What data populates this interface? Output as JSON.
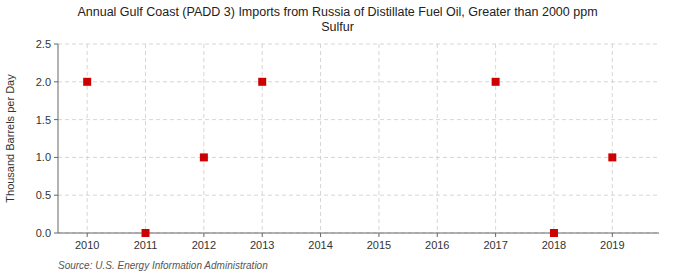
{
  "chart_data": {
    "type": "scatter",
    "title": "Annual Gulf Coast (PADD 3) Imports from Russia of Distillate Fuel Oil, Greater than 2000 ppm\nSulfur",
    "y_label": "Thousand Barrels per Day",
    "annotations": [
      "Source: U.S. Energy Information Administration"
    ],
    "x": [
      2010,
      2011,
      2012,
      2013,
      2017,
      2018,
      2019
    ],
    "values": [
      2.0,
      0.0,
      1.0,
      2.0,
      2.0,
      0.0,
      1.0
    ],
    "color": "#cc0000",
    "marker": "square",
    "xlim": [
      2009.5,
      2019.8
    ],
    "ylim": [
      0.0,
      2.5
    ],
    "xticks": [
      2010,
      2011,
      2012,
      2013,
      2014,
      2015,
      2016,
      2017,
      2018,
      2019
    ],
    "yticks": [
      {
        "value": 0.0,
        "label": "0.0"
      },
      0.5,
      {
        "value": 1.0,
        "label": "1.0"
      },
      1.5,
      {
        "value": 2.0,
        "label": "2.0"
      },
      2.5
    ],
    "grid": true
  }
}
